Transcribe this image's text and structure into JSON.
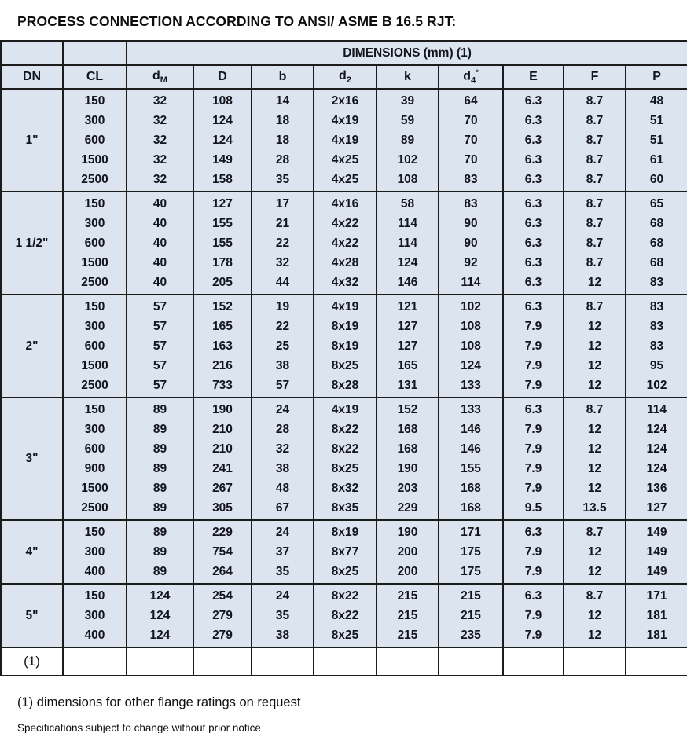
{
  "title": "PROCESS CONNECTION ACCORDING TO ANSI/ ASME B 16.5 RJT:",
  "colors": {
    "cell_bg": "#dce4f0",
    "border": "#1c1c1c",
    "text": "#13151c",
    "page_bg": "#ffffff"
  },
  "table": {
    "dimensions_title": "DIMENSIONS (mm) (1)",
    "footnote_marker": "(1)",
    "columns": [
      {
        "id": "dn",
        "label": "DN"
      },
      {
        "id": "cl",
        "label": "CL"
      },
      {
        "id": "dm",
        "base": "d",
        "sub": "M"
      },
      {
        "id": "d",
        "base": "D"
      },
      {
        "id": "b",
        "base": "b"
      },
      {
        "id": "d2",
        "base": "d",
        "sub": "2"
      },
      {
        "id": "k",
        "base": "k"
      },
      {
        "id": "d4",
        "base": "d",
        "sub": "4",
        "star": "*"
      },
      {
        "id": "e",
        "base": "E"
      },
      {
        "id": "f",
        "base": "F"
      },
      {
        "id": "p",
        "base": "P"
      }
    ],
    "sections": [
      {
        "dn": "1\"",
        "rows": [
          [
            "150",
            "32",
            "108",
            "14",
            "2x16",
            "39",
            "64",
            "6.3",
            "8.7",
            "48"
          ],
          [
            "300",
            "32",
            "124",
            "18",
            "4x19",
            "59",
            "70",
            "6.3",
            "8.7",
            "51"
          ],
          [
            "600",
            "32",
            "124",
            "18",
            "4x19",
            "89",
            "70",
            "6.3",
            "8.7",
            "51"
          ],
          [
            "1500",
            "32",
            "149",
            "28",
            "4x25",
            "102",
            "70",
            "6.3",
            "8.7",
            "61"
          ],
          [
            "2500",
            "32",
            "158",
            "35",
            "4x25",
            "108",
            "83",
            "6.3",
            "8.7",
            "60"
          ]
        ]
      },
      {
        "dn": "1 1/2\"",
        "rows": [
          [
            "150",
            "40",
            "127",
            "17",
            "4x16",
            "58",
            "83",
            "6.3",
            "8.7",
            "65"
          ],
          [
            "300",
            "40",
            "155",
            "21",
            "4x22",
            "114",
            "90",
            "6.3",
            "8.7",
            "68"
          ],
          [
            "600",
            "40",
            "155",
            "22",
            "4x22",
            "114",
            "90",
            "6.3",
            "8.7",
            "68"
          ],
          [
            "1500",
            "40",
            "178",
            "32",
            "4x28",
            "124",
            "92",
            "6.3",
            "8.7",
            "68"
          ],
          [
            "2500",
            "40",
            "205",
            "44",
            "4x32",
            "146",
            "114",
            "6.3",
            "12",
            "83"
          ]
        ]
      },
      {
        "dn": "2\"",
        "rows": [
          [
            "150",
            "57",
            "152",
            "19",
            "4x19",
            "121",
            "102",
            "6.3",
            "8.7",
            "83"
          ],
          [
            "300",
            "57",
            "165",
            "22",
            "8x19",
            "127",
            "108",
            "7.9",
            "12",
            "83"
          ],
          [
            "600",
            "57",
            "163",
            "25",
            "8x19",
            "127",
            "108",
            "7.9",
            "12",
            "83"
          ],
          [
            "1500",
            "57",
            "216",
            "38",
            "8x25",
            "165",
            "124",
            "7.9",
            "12",
            "95"
          ],
          [
            "2500",
            "57",
            "733",
            "57",
            "8x28",
            "131",
            "133",
            "7.9",
            "12",
            "102"
          ]
        ]
      },
      {
        "dn": "3\"",
        "rows": [
          [
            "150",
            "89",
            "190",
            "24",
            "4x19",
            "152",
            "133",
            "6.3",
            "8.7",
            "114"
          ],
          [
            "300",
            "89",
            "210",
            "28",
            "8x22",
            "168",
            "146",
            "7.9",
            "12",
            "124"
          ],
          [
            "600",
            "89",
            "210",
            "32",
            "8x22",
            "168",
            "146",
            "7.9",
            "12",
            "124"
          ],
          [
            "900",
            "89",
            "241",
            "38",
            "8x25",
            "190",
            "155",
            "7.9",
            "12",
            "124"
          ],
          [
            "1500",
            "89",
            "267",
            "48",
            "8x32",
            "203",
            "168",
            "7.9",
            "12",
            "136"
          ],
          [
            "2500",
            "89",
            "305",
            "67",
            "8x35",
            "229",
            "168",
            "9.5",
            "13.5",
            "127"
          ]
        ]
      },
      {
        "dn": "4\"",
        "rows": [
          [
            "150",
            "89",
            "229",
            "24",
            "8x19",
            "190",
            "171",
            "6.3",
            "8.7",
            "149"
          ],
          [
            "300",
            "89",
            "754",
            "37",
            "8x77",
            "200",
            "175",
            "7.9",
            "12",
            "149"
          ],
          [
            "400",
            "89",
            "264",
            "35",
            "8x25",
            "200",
            "175",
            "7.9",
            "12",
            "149"
          ]
        ]
      },
      {
        "dn": "5\"",
        "rows": [
          [
            "150",
            "124",
            "254",
            "24",
            "8x22",
            "215",
            "215",
            "6.3",
            "8.7",
            "171"
          ],
          [
            "300",
            "124",
            "279",
            "35",
            "8x22",
            "215",
            "215",
            "7.9",
            "12",
            "181"
          ],
          [
            "400",
            "124",
            "279",
            "38",
            "8x25",
            "215",
            "235",
            "7.9",
            "12",
            "181"
          ]
        ]
      }
    ]
  },
  "footer": {
    "note1": "(1) dimensions for other flange ratings on request",
    "note2": "Specifications subject to change without prior notice"
  }
}
